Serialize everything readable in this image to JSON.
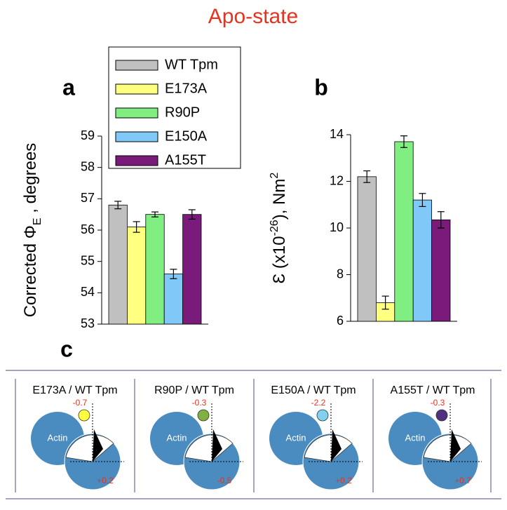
{
  "title": "Apo-state",
  "legend": {
    "names": [
      "WT Tpm",
      "E173A",
      "R90P",
      "E150A",
      "A155T"
    ],
    "colors": [
      "#c0c0c0",
      "#ffff80",
      "#80ee80",
      "#80c8f8",
      "#7a1a7a"
    ]
  },
  "chart_data": [
    {
      "type": "bar",
      "panel_label": "a",
      "ylabel": [
        {
          "text": "Corrected Φ"
        },
        {
          "text": "E",
          "script": "sub"
        },
        {
          "text": " , degrees"
        }
      ],
      "values": [
        56.8,
        56.1,
        56.5,
        54.6,
        56.5
      ],
      "errors": [
        0.12,
        0.17,
        0.08,
        0.15,
        0.15
      ],
      "ylim": [
        53,
        59
      ],
      "yticks": [
        53,
        54,
        55,
        56,
        57,
        58,
        59
      ]
    },
    {
      "type": "bar",
      "panel_label": "b",
      "ylabel": [
        {
          "text": "Ɛ (x10"
        },
        {
          "text": "-26",
          "script": "super"
        },
        {
          "text": "), Nm"
        },
        {
          "text": "2",
          "script": "super"
        }
      ],
      "values": [
        12.2,
        6.8,
        13.7,
        11.2,
        10.35
      ],
      "errors": [
        0.25,
        0.28,
        0.25,
        0.28,
        0.35
      ],
      "ylim": [
        6,
        14
      ],
      "yticks": [
        6,
        8,
        10,
        12,
        14
      ]
    }
  ],
  "panel_c": {
    "label": "c",
    "actin": "Actin",
    "panels": [
      {
        "title": "E173A / WT Tpm",
        "top": "-0.7",
        "bottom": "+0.2",
        "color": "#ffff40"
      },
      {
        "title": "R90P / WT Tpm",
        "top": "-0.3",
        "bottom": "-0.5",
        "color": "#80b040"
      },
      {
        "title": "E150A / WT Tpm",
        "top": "-2.2",
        "bottom": "+0.2",
        "color": "#80d0f0"
      },
      {
        "title": "A155T / WT Tpm",
        "top": "-0.3",
        "bottom": "+0.7",
        "color": "#503080"
      }
    ]
  }
}
